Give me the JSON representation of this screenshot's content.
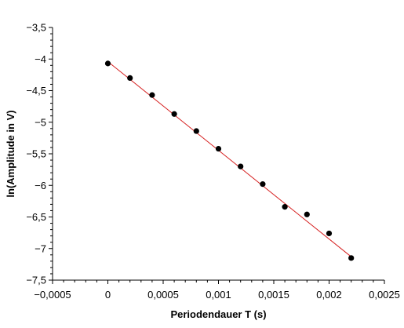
{
  "chart_data": {
    "type": "scatter",
    "xlabel": "Periodendauer T (s)",
    "ylabel": "ln(Amplitude in V)",
    "xlim": [
      -0.0005,
      0.0025
    ],
    "ylim": [
      -7.5,
      -3.5
    ],
    "x_ticks": [
      -0.0005,
      0,
      0.0005,
      0.001,
      0.0015,
      0.002,
      0.0025
    ],
    "x_tick_labels": [
      "−0,0005",
      "0",
      "0,0005",
      "0,001",
      "0,0015",
      "0,002",
      "0,0025"
    ],
    "y_ticks": [
      -3.5,
      -4,
      -4.5,
      -5,
      -5.5,
      -6,
      -6.5,
      -7,
      -7.5
    ],
    "y_tick_labels": [
      "−3,5",
      "−4",
      "−4,5",
      "−5",
      "−5,5",
      "−6",
      "−6,5",
      "−7",
      "−7,5"
    ],
    "grid": false,
    "legend": "none",
    "series": [
      {
        "type": "scatter",
        "color": "#000000",
        "x": [
          0,
          0.0002,
          0.0004,
          0.0006,
          0.0008,
          0.001,
          0.0012,
          0.0014,
          0.0016,
          0.0018,
          0.002,
          0.0022
        ],
        "y": [
          -4.07,
          -4.3,
          -4.57,
          -4.87,
          -5.14,
          -5.42,
          -5.7,
          -5.98,
          -6.34,
          -6.46,
          -6.76,
          -7.15
        ]
      },
      {
        "type": "line",
        "color": "#d62020",
        "x": [
          0,
          0.0022
        ],
        "y": [
          -4.04,
          -7.13
        ]
      }
    ]
  }
}
